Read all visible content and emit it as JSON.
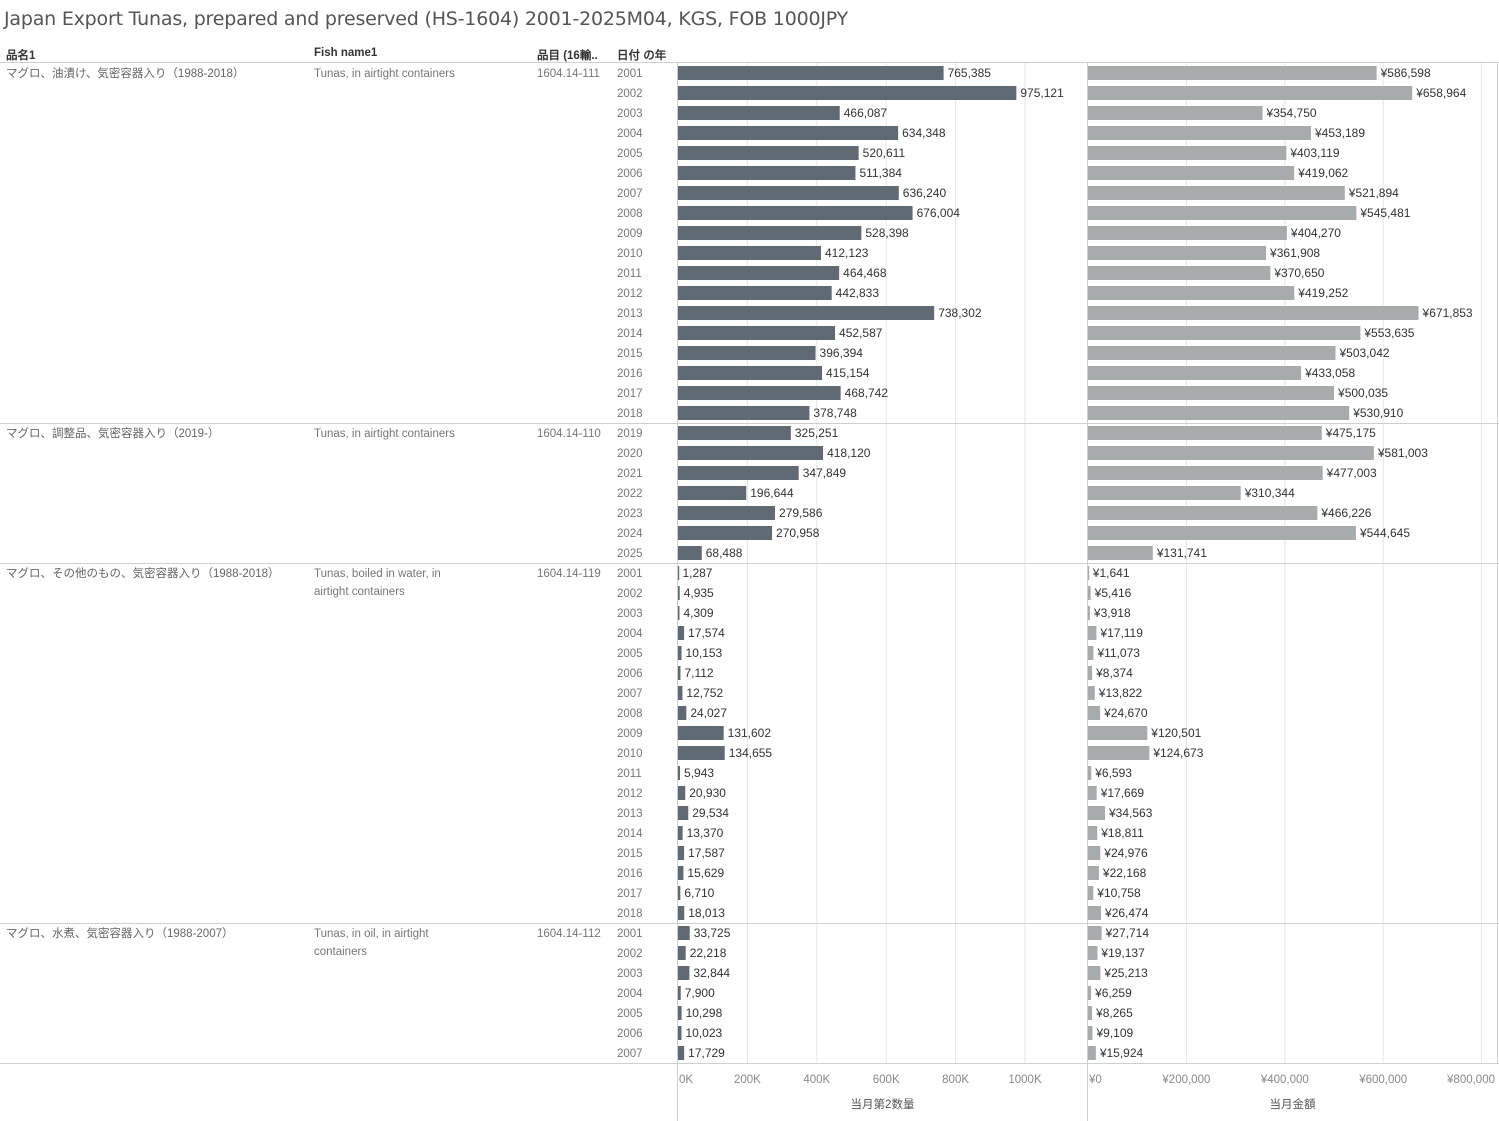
{
  "title": "Japan Export Tunas, prepared and preserved  (HS-1604) 2001-2025M04, KGS, FOB 1000JPY",
  "headers": {
    "name_jp": "品名1",
    "fish_name": "Fish name1",
    "code": "品目 (16輸..",
    "year": "日付 の年"
  },
  "colors": {
    "qty_bar": "#5f6a74",
    "value_bar": "#a8abac",
    "row_text": "#666666",
    "grid": "#e6e6e6",
    "divider": "#cfcfcf"
  },
  "chart_data": {
    "type": "bar",
    "orientation": "horizontal",
    "groups": [
      {
        "name_jp": "マグロ、油漬け、気密容器入り（1988-2018）",
        "fish_name": "Tunas, in airtight containers",
        "code": "1604.14-111",
        "years": [
          "2001",
          "2002",
          "2003",
          "2004",
          "2005",
          "2006",
          "2007",
          "2008",
          "2009",
          "2010",
          "2011",
          "2012",
          "2013",
          "2014",
          "2015",
          "2016",
          "2017",
          "2018"
        ],
        "quantity": [
          765385,
          975121,
          466087,
          634348,
          520611,
          511384,
          636240,
          676004,
          528398,
          412123,
          464468,
          442833,
          738302,
          452587,
          396394,
          415154,
          468742,
          378748
        ],
        "value": [
          586598,
          658964,
          354750,
          453189,
          403119,
          419062,
          521894,
          545481,
          404270,
          361908,
          370650,
          419252,
          671853,
          553635,
          503042,
          433058,
          500035,
          530910
        ],
        "quantity_labels": [
          "765,385",
          "975,121",
          "466,087",
          "634,348",
          "520,611",
          "511,384",
          "636,240",
          "676,004",
          "528,398",
          "412,123",
          "464,468",
          "442,833",
          "738,302",
          "452,587",
          "396,394",
          "415,154",
          "468,742",
          "378,748"
        ],
        "value_labels": [
          "¥586,598",
          "¥658,964",
          "¥354,750",
          "¥453,189",
          "¥403,119",
          "¥419,062",
          "¥521,894",
          "¥545,481",
          "¥404,270",
          "¥361,908",
          "¥370,650",
          "¥419,252",
          "¥671,853",
          "¥553,635",
          "¥503,042",
          "¥433,058",
          "¥500,035",
          "¥530,910"
        ]
      },
      {
        "name_jp": "マグロ、調整品、気密容器入り（2019-）",
        "fish_name": "Tunas, in airtight containers",
        "code": "1604.14-110",
        "years": [
          "2019",
          "2020",
          "2021",
          "2022",
          "2023",
          "2024",
          "2025"
        ],
        "quantity": [
          325251,
          418120,
          347849,
          196644,
          279586,
          270958,
          68488
        ],
        "value": [
          475175,
          581003,
          477003,
          310344,
          466226,
          544645,
          131741
        ],
        "quantity_labels": [
          "325,251",
          "418,120",
          "347,849",
          "196,644",
          "279,586",
          "270,958",
          "68,488"
        ],
        "value_labels": [
          "¥475,175",
          "¥581,003",
          "¥477,003",
          "¥310,344",
          "¥466,226",
          "¥544,645",
          "¥131,741"
        ]
      },
      {
        "name_jp": "マグロ、その他のもの、気密容器入り（1988-2018）",
        "fish_name": "Tunas, boiled in water, in airtight containers",
        "code": "1604.14-119",
        "years": [
          "2001",
          "2002",
          "2003",
          "2004",
          "2005",
          "2006",
          "2007",
          "2008",
          "2009",
          "2010",
          "2011",
          "2012",
          "2013",
          "2014",
          "2015",
          "2016",
          "2017",
          "2018"
        ],
        "quantity": [
          1287,
          4935,
          4309,
          17574,
          10153,
          7112,
          12752,
          24027,
          131602,
          134655,
          5943,
          20930,
          29534,
          13370,
          17587,
          15629,
          6710,
          18013
        ],
        "value": [
          1641,
          5416,
          3918,
          17119,
          11073,
          8374,
          13822,
          24670,
          120501,
          124673,
          6593,
          17669,
          34563,
          18811,
          24976,
          22168,
          10758,
          26474
        ],
        "quantity_labels": [
          "1,287",
          "4,935",
          "4,309",
          "17,574",
          "10,153",
          "7,112",
          "12,752",
          "24,027",
          "131,602",
          "134,655",
          "5,943",
          "20,930",
          "29,534",
          "13,370",
          "17,587",
          "15,629",
          "6,710",
          "18,013"
        ],
        "value_labels": [
          "¥1,641",
          "¥5,416",
          "¥3,918",
          "¥17,119",
          "¥11,073",
          "¥8,374",
          "¥13,822",
          "¥24,670",
          "¥120,501",
          "¥124,673",
          "¥6,593",
          "¥17,669",
          "¥34,563",
          "¥18,811",
          "¥24,976",
          "¥22,168",
          "¥10,758",
          "¥26,474"
        ]
      },
      {
        "name_jp": "マグロ、水煮、気密容器入り（1988-2007）",
        "fish_name": "Tunas, in oil, in airtight containers",
        "code": "1604.14-112",
        "years": [
          "2001",
          "2002",
          "2003",
          "2004",
          "2005",
          "2006",
          "2007"
        ],
        "quantity": [
          33725,
          22218,
          32844,
          7900,
          10298,
          10023,
          17729
        ],
        "value": [
          27714,
          19137,
          25213,
          6259,
          8265,
          9109,
          15924
        ],
        "quantity_labels": [
          "33,725",
          "22,218",
          "32,844",
          "7,900",
          "10,298",
          "10,023",
          "17,729"
        ],
        "value_labels": [
          "¥27,714",
          "¥19,137",
          "¥25,213",
          "¥6,259",
          "¥8,265",
          "¥9,109",
          "¥15,924"
        ]
      }
    ],
    "quantity_axis": {
      "label": "当月第2数量",
      "ticks": [
        0,
        200000,
        400000,
        600000,
        800000,
        1000000
      ],
      "tick_labels": [
        "0K",
        "200K",
        "400K",
        "600K",
        "800K",
        "1000K"
      ],
      "xlim": [
        0,
        1180000
      ]
    },
    "value_axis": {
      "label": "当月金額",
      "ticks": [
        0,
        200000,
        400000,
        600000,
        800000
      ],
      "tick_labels": [
        "¥0",
        "¥200,000",
        "¥400,000",
        "¥600,000",
        "¥800,000"
      ],
      "xlim": [
        0,
        820000
      ]
    },
    "grid": true
  }
}
